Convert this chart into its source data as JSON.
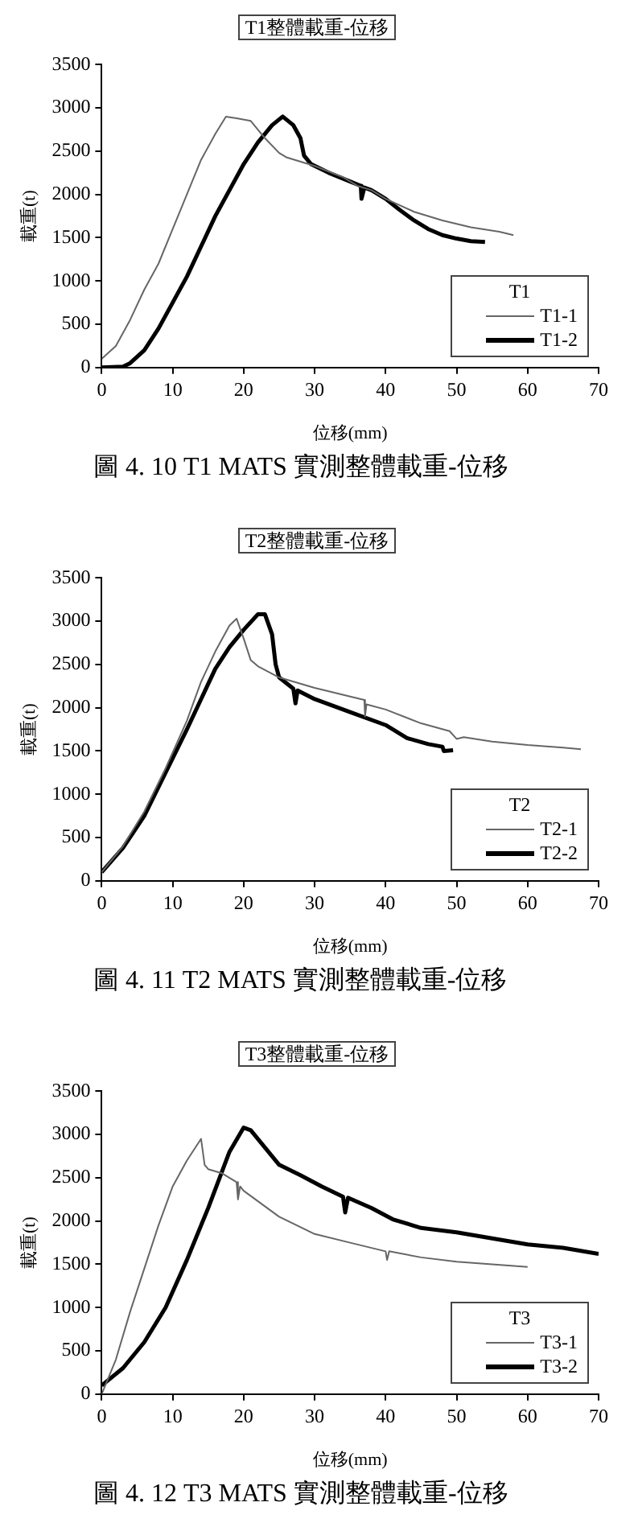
{
  "chart_data": [
    {
      "type": "line",
      "title": "T1整體載重-位移",
      "xlabel": "位移(mm)",
      "ylabel": "載重(t)",
      "legend_title": "T1",
      "legend": "bottom right",
      "xlim": [
        0,
        70
      ],
      "xticks": [
        0,
        10,
        20,
        30,
        40,
        50,
        60,
        70
      ],
      "ylim": [
        0,
        3500
      ],
      "yticks": [
        0,
        500,
        1000,
        1500,
        2000,
        2500,
        3000,
        3500
      ],
      "annotations": [
        "圖 4. 10 T1 MATS 實測整體載重-位移"
      ],
      "series": [
        {
          "name": "T1-1",
          "color": "#666666",
          "x": [
            0,
            2,
            4,
            6,
            8,
            10,
            12,
            14,
            16,
            17.5,
            19,
            21,
            23,
            25,
            26,
            30,
            34,
            36,
            38,
            40,
            44,
            48,
            52,
            56,
            58
          ],
          "values": [
            100,
            250,
            550,
            900,
            1200,
            1600,
            2000,
            2400,
            2700,
            2900,
            2880,
            2850,
            2650,
            2480,
            2430,
            2330,
            2200,
            2100,
            2050,
            1950,
            1800,
            1700,
            1620,
            1570,
            1530
          ]
        },
        {
          "name": "T1-2",
          "color": "#000000",
          "x": [
            0,
            3,
            4,
            6,
            8,
            10,
            12,
            14,
            16,
            18,
            20,
            22,
            24,
            25.5,
            27,
            28,
            28.5,
            29.5,
            32,
            35,
            36.5,
            36.6,
            37,
            38,
            40,
            42,
            44,
            46,
            48,
            50,
            52,
            54
          ],
          "values": [
            0,
            10,
            50,
            200,
            450,
            750,
            1050,
            1400,
            1750,
            2050,
            2350,
            2600,
            2800,
            2900,
            2800,
            2650,
            2450,
            2350,
            2250,
            2150,
            2100,
            1950,
            2080,
            2050,
            1950,
            1820,
            1700,
            1600,
            1530,
            1490,
            1460,
            1450
          ]
        }
      ]
    },
    {
      "type": "line",
      "title": "T2整體載重-位移",
      "xlabel": "位移(mm)",
      "ylabel": "載重(t)",
      "legend_title": "T2",
      "legend": "bottom right",
      "xlim": [
        0,
        70
      ],
      "xticks": [
        0,
        10,
        20,
        30,
        40,
        50,
        60,
        70
      ],
      "ylim": [
        0,
        3500
      ],
      "yticks": [
        0,
        500,
        1000,
        1500,
        2000,
        2500,
        3000,
        3500
      ],
      "annotations": [
        "圖 4. 11 T2 MATS 實測整體載重-位移"
      ],
      "series": [
        {
          "name": "T2-1",
          "color": "#666666",
          "x": [
            0,
            3,
            6,
            9,
            12,
            14,
            16,
            18,
            19,
            20,
            21,
            22,
            25,
            30,
            35,
            37,
            37.1,
            37.3,
            40,
            45,
            49,
            50,
            51,
            55,
            60,
            65,
            67.5
          ],
          "values": [
            100,
            400,
            800,
            1300,
            1850,
            2300,
            2650,
            2950,
            3030,
            2800,
            2550,
            2480,
            2350,
            2230,
            2130,
            2090,
            1900,
            2040,
            1980,
            1820,
            1730,
            1640,
            1660,
            1610,
            1570,
            1540,
            1520
          ]
        },
        {
          "name": "T2-2",
          "color": "#000000",
          "x": [
            0,
            3,
            6,
            9,
            12,
            14,
            16,
            18,
            20,
            22,
            23,
            24,
            24.5,
            25,
            27,
            27.3,
            27.6,
            30,
            35,
            40,
            43,
            46,
            48,
            48.2,
            49.5
          ],
          "values": [
            100,
            380,
            750,
            1250,
            1750,
            2100,
            2450,
            2700,
            2900,
            3080,
            3080,
            2850,
            2500,
            2350,
            2220,
            2050,
            2200,
            2100,
            1950,
            1800,
            1650,
            1580,
            1550,
            1500,
            1510
          ]
        }
      ]
    },
    {
      "type": "line",
      "title": "T3整體載重-位移",
      "xlabel": "位移(mm)",
      "ylabel": "載重(t)",
      "legend_title": "T3",
      "legend": "bottom right",
      "xlim": [
        0,
        70
      ],
      "xticks": [
        0,
        10,
        20,
        30,
        40,
        50,
        60,
        70
      ],
      "ylim": [
        0,
        3500
      ],
      "yticks": [
        0,
        500,
        1000,
        1500,
        2000,
        2500,
        3000,
        3500
      ],
      "annotations": [
        "圖 4. 12 T3 MATS 實測整體載重-位移"
      ],
      "series": [
        {
          "name": "T3-1",
          "color": "#666666",
          "x": [
            0,
            2,
            4,
            6,
            8,
            10,
            12,
            14,
            14.5,
            15,
            17,
            19,
            19.2,
            19.5,
            20,
            25,
            30,
            35,
            40,
            40.2,
            40.5,
            45,
            50,
            55,
            60
          ],
          "values": [
            0,
            400,
            950,
            1450,
            1950,
            2400,
            2700,
            2950,
            2650,
            2600,
            2550,
            2450,
            2250,
            2400,
            2350,
            2050,
            1850,
            1750,
            1650,
            1550,
            1650,
            1580,
            1530,
            1500,
            1470
          ]
        },
        {
          "name": "T3-2",
          "color": "#000000",
          "x": [
            0,
            3,
            6,
            9,
            12,
            15,
            18,
            20,
            21,
            23,
            25,
            28,
            31,
            34,
            34.3,
            34.7,
            38,
            41,
            45,
            50,
            55,
            60,
            65,
            70
          ],
          "values": [
            100,
            300,
            600,
            1000,
            1550,
            2150,
            2800,
            3080,
            3050,
            2850,
            2650,
            2530,
            2400,
            2280,
            2100,
            2270,
            2150,
            2020,
            1920,
            1870,
            1800,
            1730,
            1690,
            1620
          ]
        }
      ]
    }
  ]
}
